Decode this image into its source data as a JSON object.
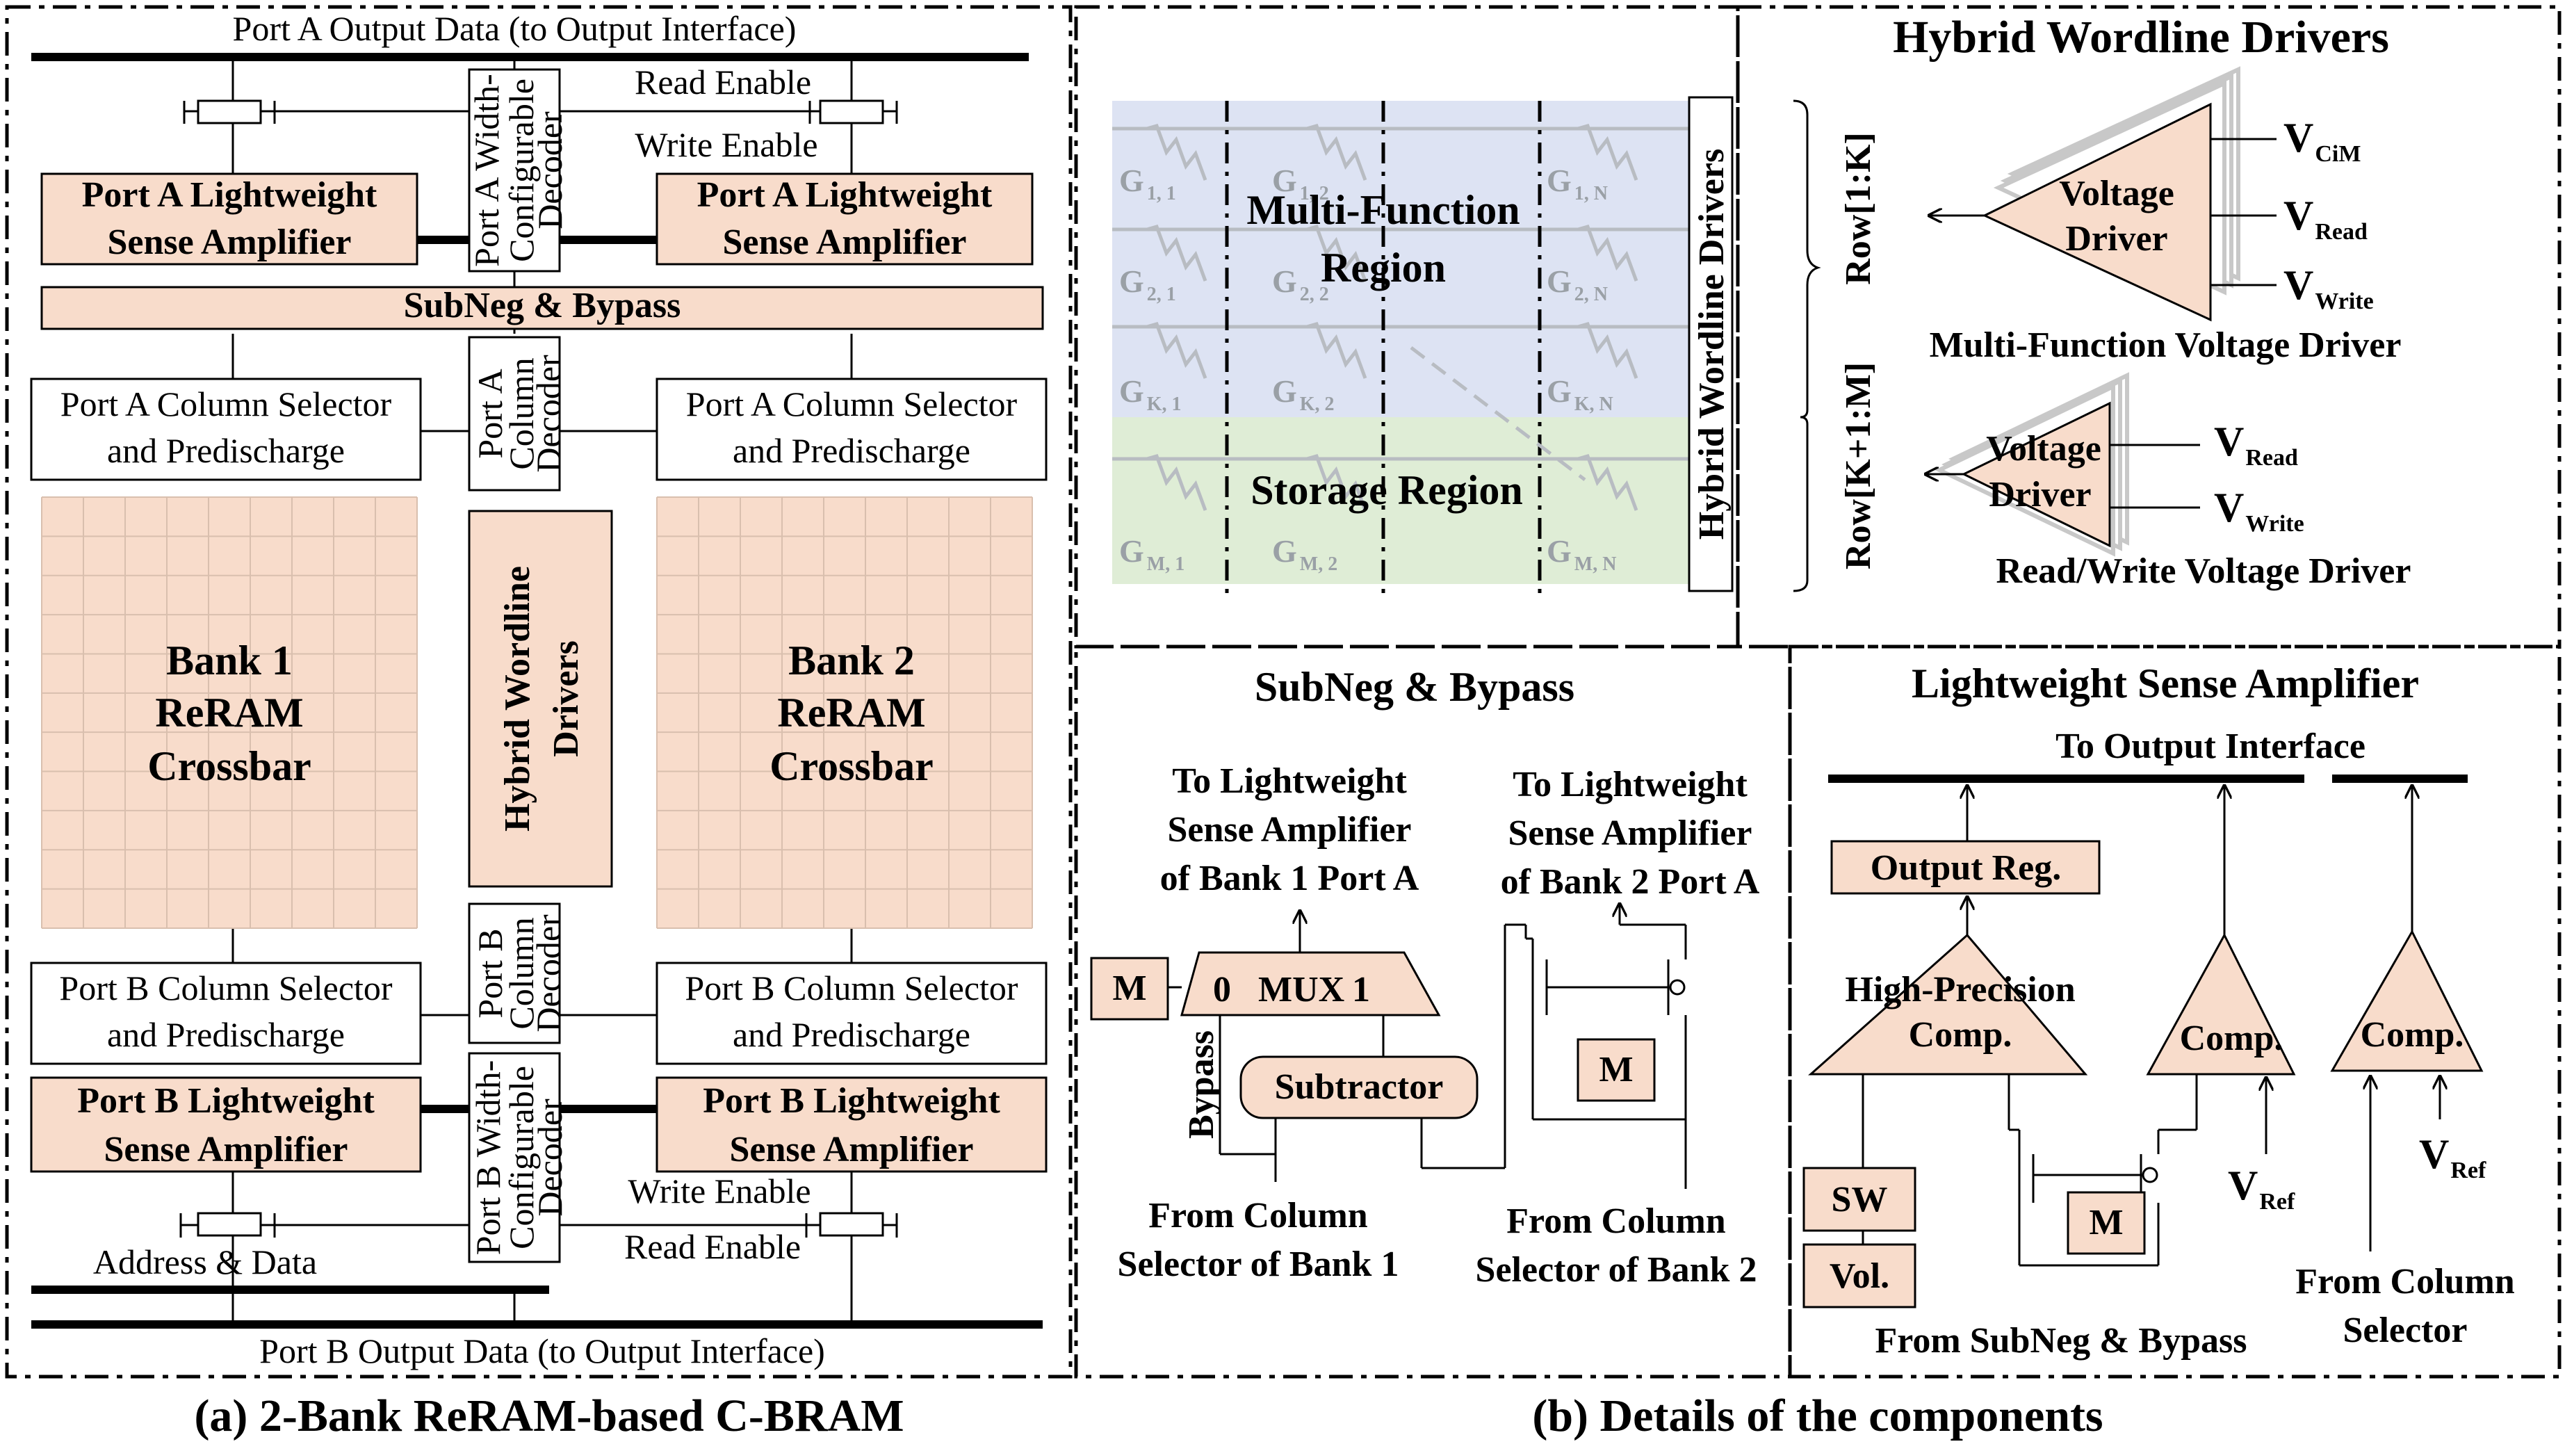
{
  "part_a": {
    "caption": "(a) 2-Bank ReRAM-based C-BRAM",
    "port_a_output": "Port A Output Data (to Output Interface)",
    "port_b_output": "Port B Output Data (to Output Interface)",
    "read_enable_top": "Read Enable",
    "write_enable_top": "Write Enable",
    "write_enable_bottom": "Write Enable",
    "read_enable_bottom": "Read Enable",
    "address_data": "Address & Data",
    "port_a_sa_line1": "Port A Lightweight",
    "port_a_sa_line2": "Sense Amplifier",
    "port_b_sa_line1": "Port B Lightweight",
    "port_b_sa_line2": "Sense Amplifier",
    "subneg_bypass": "SubNeg & Bypass",
    "port_a_col_sel_line1": "Port A Column Selector",
    "port_a_col_sel_line2": "and  Predischarge",
    "port_b_col_sel_line1": "Port B Column Selector",
    "port_b_col_sel_line2": "and  Predischarge",
    "port_a_width_dec": [
      "Port A Width-",
      "Configurable",
      "Decoder"
    ],
    "port_b_width_dec": [
      "Port B Width-",
      "Configurable",
      "Decoder"
    ],
    "port_a_col_dec": [
      "Port A",
      "Column",
      "Decoder"
    ],
    "port_b_col_dec": [
      "Port B",
      "Column",
      "Decoder"
    ],
    "hwd": [
      "Hybrid Wordline",
      "Drivers"
    ],
    "bank1": [
      "Bank 1",
      "ReRAM",
      "Crossbar"
    ],
    "bank2": [
      "Bank 2",
      "ReRAM",
      "Crossbar"
    ]
  },
  "part_b": {
    "caption": "(b) Details of the components",
    "hwd_title": "Hybrid Wordline Drivers",
    "multi_function_region": [
      "Multi-Function",
      "Region"
    ],
    "storage_region": "Storage Region",
    "hwd_vertical": "Hybrid Wordline Drivers",
    "row_1k": "Row[1:K]",
    "row_k1m": "Row[K+1:M]",
    "g_cells": {
      "g11": "G",
      "g11_sub": "1, 1",
      "g12": "G",
      "g12_sub": "1, 2",
      "g1n": "G",
      "g1n_sub": "1, N",
      "g21": "G",
      "g21_sub": "2, 1",
      "g22": "G",
      "g22_sub": "2, 2",
      "g2n": "G",
      "g2n_sub": "2, N",
      "gk1": "G",
      "gk1_sub": "K, 1",
      "gk2": "G",
      "gk2_sub": "K, 2",
      "gkn": "G",
      "gkn_sub": "K, N",
      "gm1": "G",
      "gm1_sub": "M, 1",
      "gm2": "G",
      "gm2_sub": "M, 2",
      "gmn": "G",
      "gmn_sub": "M, N"
    },
    "voltage_driver": [
      "Voltage",
      "Driver"
    ],
    "v": "V",
    "v_cim_sub": "CiM",
    "v_read_sub": "Read",
    "v_write_sub": "Write",
    "v_ref_sub": "Ref",
    "mf_driver_caption": "Multi-Function Voltage Driver",
    "rw_driver_caption": "Read/Write Voltage Driver",
    "subneg_title": "SubNeg & Bypass",
    "to_sa_bank1": [
      "To Lightweight",
      "Sense Amplifier",
      "of Bank 1 Port A"
    ],
    "to_sa_bank2": [
      "To Lightweight",
      "Sense Amplifier",
      "of Bank 2 Port A"
    ],
    "mux_0": "0",
    "mux_label": "MUX",
    "mux_1": "1",
    "m": "M",
    "bypass": "Bypass",
    "subtractor": "Subtractor",
    "from_col_bank1": [
      "From Column",
      "Selector of Bank 1"
    ],
    "from_col_bank2": [
      "From Column",
      "Selector of Bank 2"
    ],
    "lsa_title": "Lightweight Sense Amplifier",
    "to_output_interface": "To Output Interface",
    "output_reg": "Output Reg.",
    "hp_comp": [
      "High-Precision",
      "Comp."
    ],
    "comp": "Comp.",
    "sw": "SW",
    "vol": "Vol.",
    "from_subneg": "From SubNeg & Bypass",
    "from_column_selector": [
      "From Column",
      "Selector"
    ]
  }
}
